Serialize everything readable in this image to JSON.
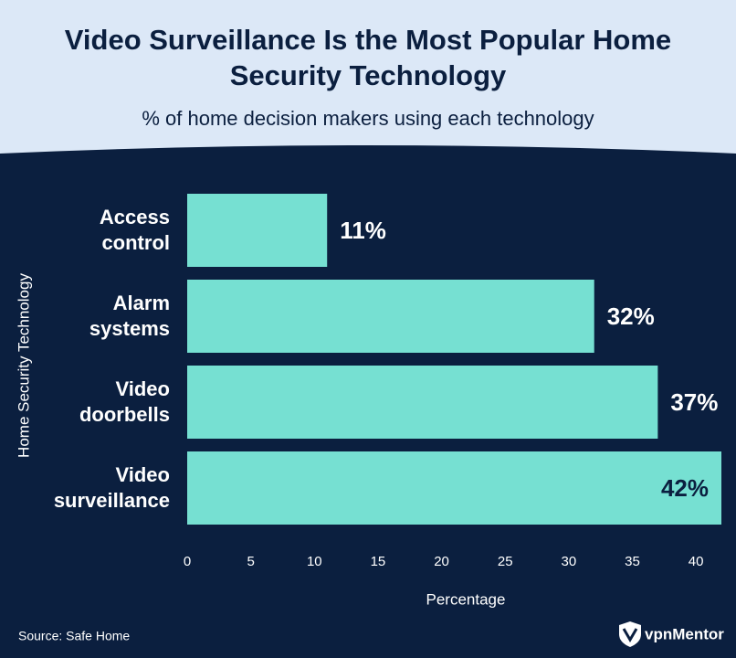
{
  "chart_data": {
    "type": "bar",
    "orientation": "horizontal",
    "title": "Video Surveillance Is the Most Popular Home Security Technology",
    "subtitle": "% of home decision makers using each technology",
    "categories": [
      "Access control",
      "Alarm systems",
      "Video doorbells",
      "Video surveillance"
    ],
    "values": [
      11,
      32,
      37,
      42
    ],
    "value_labels": [
      "11%",
      "32%",
      "37%",
      "42%"
    ],
    "color": "#76e0d2",
    "xlim": [
      0,
      42
    ],
    "xticks": [
      0,
      5,
      10,
      15,
      20,
      25,
      30,
      35,
      40
    ],
    "xlabel": "Percentage",
    "ylabel": "Home Security Technology",
    "grid": false
  },
  "source": "Source: Safe Home",
  "logo": "vpnMentor"
}
